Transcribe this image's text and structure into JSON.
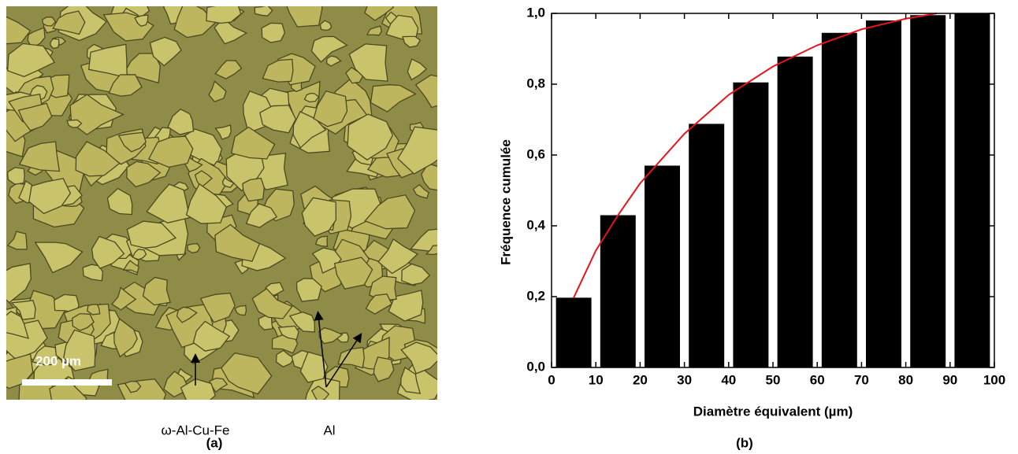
{
  "panel_a": {
    "scale_bar": "200 µm",
    "labels": [
      "ω-Al-Cu-Fe",
      "Al"
    ],
    "caption": "(a)"
  },
  "panel_b": {
    "caption": "(b)"
  },
  "chart_data": {
    "type": "bar",
    "xlabel": "Diamètre équivalent (µm)",
    "ylabel": "Fréquence cumulée",
    "x": [
      5,
      15,
      25,
      35,
      45,
      55,
      65,
      75,
      85,
      95
    ],
    "values": [
      0.197,
      0.43,
      0.57,
      0.688,
      0.805,
      0.878,
      0.945,
      0.98,
      0.995,
      1.0
    ],
    "color": "#000000",
    "fit": {
      "color": "#e8141c",
      "x": [
        5,
        10,
        15,
        20,
        30,
        40,
        50,
        60,
        70,
        80,
        87
      ],
      "values": [
        0.197,
        0.33,
        0.43,
        0.52,
        0.66,
        0.77,
        0.85,
        0.91,
        0.955,
        0.985,
        1.0
      ]
    },
    "xlim": [
      0,
      100
    ],
    "ylim": [
      0,
      1.0
    ],
    "xticks": [
      0,
      10,
      20,
      30,
      40,
      50,
      60,
      70,
      80,
      90,
      100
    ],
    "yticks": [
      {
        "value": 0,
        "label": "0,0"
      },
      {
        "value": 0.2,
        "label": "0,2"
      },
      {
        "value": 0.4,
        "label": "0,4"
      },
      {
        "value": 0.6,
        "label": "0,6"
      },
      {
        "value": 0.8,
        "label": "0,8"
      },
      {
        "value": 1.0,
        "label": "1,0"
      }
    ]
  }
}
